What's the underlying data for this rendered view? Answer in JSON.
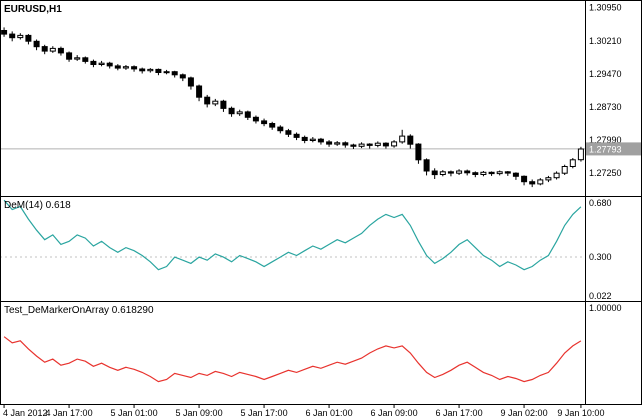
{
  "panels": {
    "price": {
      "label": "EURUSD,H1"
    },
    "dem": {
      "label": "DeM(14) 0.618"
    },
    "test": {
      "label": "Test_DeMarkerOnArray 0.618290"
    }
  },
  "colors": {
    "background": "#ffffff",
    "bullish_candle": "#ffffff",
    "bearish_candle": "#000000",
    "candle_outline": "#000000",
    "dem_line": "#2aa5a0",
    "test_line": "#e8332e",
    "level_line": "#c0c0c0",
    "current_price_line": "#b0b0b0",
    "current_price_tag_bg": "#a0a0a0",
    "current_price_tag_text": "#ffffff",
    "axis_text": "#000000",
    "border": "#000000"
  },
  "chart_data": [
    {
      "type": "candlestick",
      "title": "EURUSD,H1",
      "symbol": "EURUSD",
      "timeframe": "H1",
      "x_tick_indices": [
        0,
        8,
        16,
        24,
        32,
        40,
        48,
        56,
        64,
        71
      ],
      "x_tick_labels": [
        "4 Jan 2012",
        "4 Jan 17:00",
        "5 Jan 01:00",
        "5 Jan 09:00",
        "5 Jan 17:00",
        "6 Jan 01:00",
        "6 Jan 09:00",
        "6 Jan 17:00",
        "9 Jan 02:00",
        "9 Jan 10:00"
      ],
      "y_axis": {
        "min": 1.2674,
        "max": 1.311,
        "ticks": [
          1.3095,
          1.3021,
          1.2947,
          1.2873,
          1.2799,
          1.2725
        ],
        "labels": [
          "1.30950",
          "1.30210",
          "1.29470",
          "1.28730",
          "1.27990",
          "1.27250"
        ]
      },
      "current_price": 1.27793,
      "current_price_label": "1.27793",
      "ohlc": [
        [
          1.3044,
          1.3051,
          1.303,
          1.3036
        ],
        [
          1.3036,
          1.3042,
          1.302,
          1.3028
        ],
        [
          1.3028,
          1.3038,
          1.3024,
          1.3033
        ],
        [
          1.3033,
          1.3036,
          1.3013,
          1.302
        ],
        [
          1.302,
          1.3024,
          1.3,
          1.3008
        ],
        [
          1.3008,
          1.3012,
          1.2991,
          1.2998
        ],
        [
          1.2998,
          1.3009,
          1.2994,
          1.3004
        ],
        [
          1.3004,
          1.3008,
          1.2988,
          1.2994
        ],
        [
          1.2994,
          1.2997,
          1.2974,
          1.298
        ],
        [
          1.298,
          1.2989,
          1.2976,
          1.2983
        ],
        [
          1.2983,
          1.2986,
          1.297,
          1.2975
        ],
        [
          1.2975,
          1.2979,
          1.2962,
          1.2968
        ],
        [
          1.2968,
          1.2976,
          1.2964,
          1.2971
        ],
        [
          1.2971,
          1.2974,
          1.2959,
          1.2965
        ],
        [
          1.2965,
          1.2969,
          1.2955,
          1.296
        ],
        [
          1.296,
          1.2967,
          1.2956,
          1.2963
        ],
        [
          1.2963,
          1.2966,
          1.2952,
          1.2958
        ],
        [
          1.2958,
          1.2961,
          1.2948,
          1.2954
        ],
        [
          1.2954,
          1.296,
          1.295,
          1.2957
        ],
        [
          1.2957,
          1.2959,
          1.2944,
          1.295
        ],
        [
          1.295,
          1.2956,
          1.2946,
          1.2952
        ],
        [
          1.2952,
          1.2954,
          1.2939,
          1.2945
        ],
        [
          1.2945,
          1.2948,
          1.2931,
          1.2938
        ],
        [
          1.2938,
          1.2941,
          1.2912,
          1.292
        ],
        [
          1.292,
          1.2923,
          1.2886,
          1.2895
        ],
        [
          1.2895,
          1.29,
          1.2872,
          1.288
        ],
        [
          1.288,
          1.2891,
          1.2875,
          1.2886
        ],
        [
          1.2886,
          1.2889,
          1.2862,
          1.287
        ],
        [
          1.287,
          1.2874,
          1.2851,
          1.2858
        ],
        [
          1.2858,
          1.2867,
          1.2853,
          1.2862
        ],
        [
          1.2862,
          1.2865,
          1.2844,
          1.285
        ],
        [
          1.285,
          1.2854,
          1.2836,
          1.2842
        ],
        [
          1.2842,
          1.2847,
          1.283,
          1.2836
        ],
        [
          1.2836,
          1.284,
          1.2822,
          1.2828
        ],
        [
          1.2828,
          1.2832,
          1.2814,
          1.282
        ],
        [
          1.282,
          1.2824,
          1.2806,
          1.2812
        ],
        [
          1.2812,
          1.2816,
          1.2799,
          1.2805
        ],
        [
          1.2805,
          1.2809,
          1.2792,
          1.2798
        ],
        [
          1.2798,
          1.2806,
          1.2794,
          1.2801
        ],
        [
          1.2801,
          1.2804,
          1.2789,
          1.2795
        ],
        [
          1.2795,
          1.2799,
          1.2784,
          1.279
        ],
        [
          1.279,
          1.2797,
          1.2786,
          1.2793
        ],
        [
          1.2793,
          1.2796,
          1.2782,
          1.2788
        ],
        [
          1.2788,
          1.2791,
          1.2779,
          1.2785
        ],
        [
          1.2785,
          1.2794,
          1.2781,
          1.279
        ],
        [
          1.279,
          1.2792,
          1.278,
          1.2787
        ],
        [
          1.2787,
          1.2796,
          1.2783,
          1.2792
        ],
        [
          1.2792,
          1.2794,
          1.278,
          1.2786
        ],
        [
          1.2786,
          1.2799,
          1.2782,
          1.2795
        ],
        [
          1.2795,
          1.2822,
          1.2791,
          1.2808
        ],
        [
          1.2808,
          1.2812,
          1.278,
          1.279
        ],
        [
          1.279,
          1.2792,
          1.2746,
          1.2755
        ],
        [
          1.2755,
          1.2758,
          1.272,
          1.273
        ],
        [
          1.273,
          1.2736,
          1.2712,
          1.2722
        ],
        [
          1.2722,
          1.2732,
          1.2718,
          1.2728
        ],
        [
          1.2728,
          1.2731,
          1.2718,
          1.2725
        ],
        [
          1.2725,
          1.2734,
          1.2721,
          1.273
        ],
        [
          1.273,
          1.2733,
          1.272,
          1.2726
        ],
        [
          1.2726,
          1.2729,
          1.2716,
          1.2722
        ],
        [
          1.2722,
          1.273,
          1.2718,
          1.2727
        ],
        [
          1.2727,
          1.2729,
          1.2719,
          1.2724
        ],
        [
          1.2724,
          1.2731,
          1.272,
          1.2728
        ],
        [
          1.2728,
          1.273,
          1.2719,
          1.2725
        ],
        [
          1.2725,
          1.2727,
          1.271,
          1.2718
        ],
        [
          1.2718,
          1.272,
          1.2698,
          1.2706
        ],
        [
          1.2706,
          1.2711,
          1.2694,
          1.2701
        ],
        [
          1.2701,
          1.2714,
          1.2698,
          1.271
        ],
        [
          1.271,
          1.2719,
          1.2705,
          1.2715
        ],
        [
          1.2715,
          1.2729,
          1.2711,
          1.2725
        ],
        [
          1.2725,
          1.2744,
          1.2721,
          1.274
        ],
        [
          1.274,
          1.2759,
          1.2736,
          1.2755
        ],
        [
          1.2755,
          1.2784,
          1.2751,
          1.2779
        ]
      ]
    },
    {
      "type": "line",
      "name": "DeM(14)",
      "current_value": 0.618,
      "color": "#2aa5a0",
      "y_range": [
        0.022,
        0.68
      ],
      "max_label": "0.680",
      "min_label": "0.022",
      "levels": [
        {
          "value": 0.3,
          "label": "0.300"
        }
      ],
      "values": [
        0.66,
        0.6,
        0.62,
        0.54,
        0.47,
        0.41,
        0.44,
        0.38,
        0.4,
        0.44,
        0.42,
        0.37,
        0.4,
        0.36,
        0.33,
        0.36,
        0.34,
        0.31,
        0.27,
        0.22,
        0.24,
        0.3,
        0.28,
        0.26,
        0.3,
        0.28,
        0.32,
        0.3,
        0.27,
        0.31,
        0.29,
        0.27,
        0.24,
        0.27,
        0.3,
        0.33,
        0.31,
        0.34,
        0.37,
        0.35,
        0.38,
        0.41,
        0.39,
        0.42,
        0.45,
        0.5,
        0.54,
        0.57,
        0.55,
        0.57,
        0.5,
        0.4,
        0.31,
        0.26,
        0.29,
        0.33,
        0.38,
        0.41,
        0.36,
        0.31,
        0.28,
        0.24,
        0.27,
        0.25,
        0.22,
        0.24,
        0.28,
        0.31,
        0.4,
        0.5,
        0.57,
        0.618
      ]
    },
    {
      "type": "line",
      "name": "Test_DeMarkerOnArray",
      "current_value": 0.61829,
      "color": "#e8332e",
      "y_range": [
        0,
        1
      ],
      "max_label": "1.00000",
      "values": [
        0.66,
        0.6,
        0.62,
        0.54,
        0.47,
        0.41,
        0.44,
        0.38,
        0.4,
        0.44,
        0.42,
        0.37,
        0.4,
        0.36,
        0.33,
        0.36,
        0.34,
        0.31,
        0.27,
        0.22,
        0.24,
        0.3,
        0.28,
        0.26,
        0.3,
        0.28,
        0.32,
        0.3,
        0.27,
        0.31,
        0.29,
        0.27,
        0.24,
        0.27,
        0.3,
        0.33,
        0.31,
        0.34,
        0.37,
        0.35,
        0.38,
        0.41,
        0.39,
        0.42,
        0.45,
        0.5,
        0.54,
        0.57,
        0.55,
        0.57,
        0.5,
        0.4,
        0.31,
        0.26,
        0.29,
        0.33,
        0.38,
        0.41,
        0.36,
        0.31,
        0.28,
        0.24,
        0.27,
        0.25,
        0.22,
        0.24,
        0.28,
        0.31,
        0.4,
        0.5,
        0.57,
        0.61829
      ]
    }
  ]
}
